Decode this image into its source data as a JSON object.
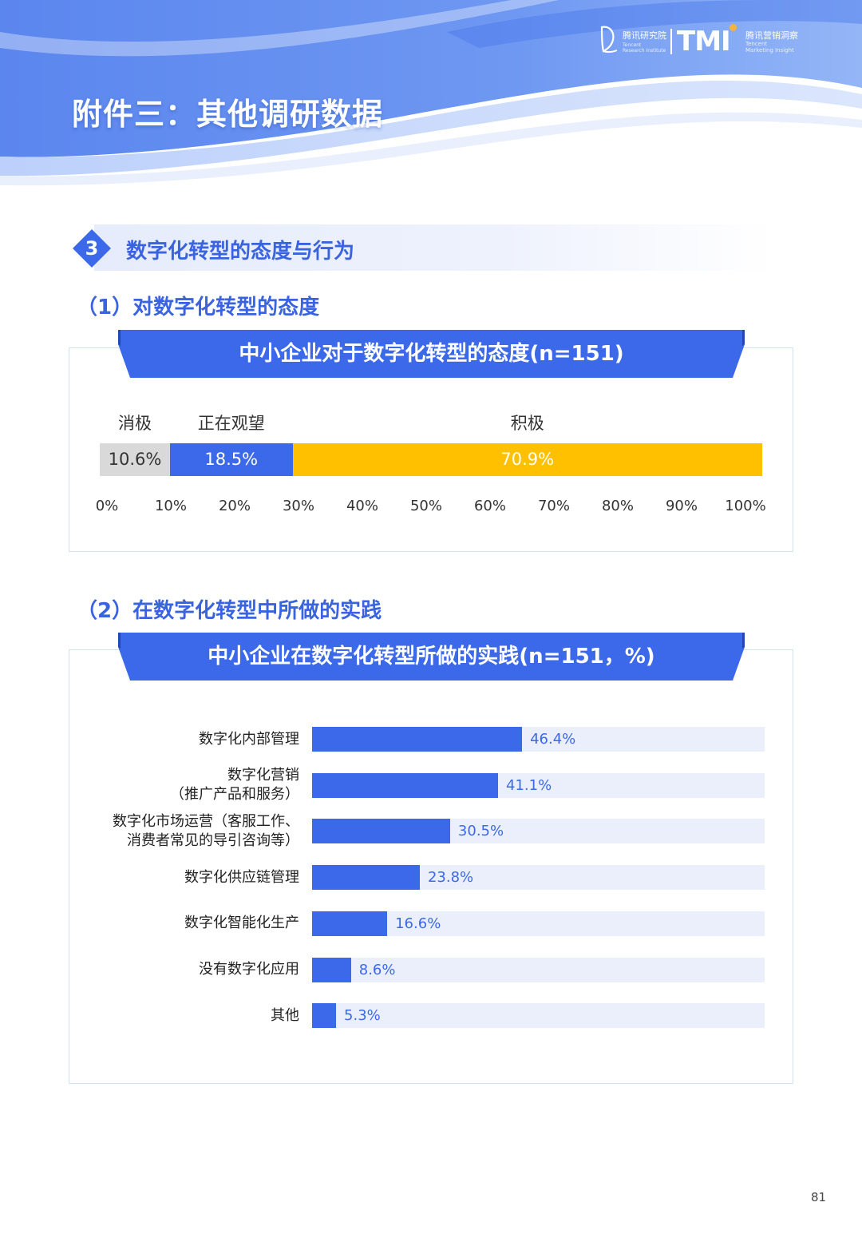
{
  "header": {
    "title": "附件三：其他调研数据",
    "logo": {
      "institute_cn": "腾讯研究院",
      "institute_en_1": "Tencent",
      "institute_en_2": "Research Institute",
      "brand": "TMI",
      "brand_cn": "腾讯营销洞察",
      "brand_en_1": "Tencent",
      "brand_en_2": "Marketing Insight"
    }
  },
  "section": {
    "number": "3",
    "title": "数字化转型的态度与行为"
  },
  "subsections": [
    {
      "title": "（1）对数字化转型的态度"
    },
    {
      "title": "（2）在数字化转型中所做的实践"
    }
  ],
  "colors": {
    "accent": "#3b69ea",
    "positive": "#ffc000",
    "negative": "#d9d9d9",
    "track": "#ebeffc"
  },
  "chart_data": [
    {
      "type": "bar",
      "orientation": "horizontal-stacked",
      "title": "中小企业对于数字化转型的态度(n=151)",
      "categories": [
        "消极",
        "正在观望",
        "积极"
      ],
      "values": [
        10.6,
        18.5,
        70.9
      ],
      "value_labels": [
        "10.6%",
        "18.5%",
        "70.9%"
      ],
      "colors": [
        "#d9d9d9",
        "#3b69ea",
        "#ffc000"
      ],
      "xlim": [
        0,
        100
      ],
      "x_ticks": [
        "0%",
        "10%",
        "20%",
        "30%",
        "40%",
        "50%",
        "60%",
        "70%",
        "80%",
        "90%",
        "100%"
      ],
      "grid": false
    },
    {
      "type": "bar",
      "orientation": "horizontal",
      "title": "中小企业在数字化转型所做的实践(n=151，%)",
      "categories": [
        {
          "lines": [
            "数字化内部管理"
          ]
        },
        {
          "lines": [
            "数字化营销",
            "（推广产品和服务）"
          ]
        },
        {
          "lines": [
            "数字化市场运营（客服工作、",
            "消费者常见的导引咨询等）"
          ]
        },
        {
          "lines": [
            "数字化供应链管理"
          ]
        },
        {
          "lines": [
            "数字化智能化生产"
          ]
        },
        {
          "lines": [
            "没有数字化应用"
          ]
        },
        {
          "lines": [
            "其他"
          ]
        }
      ],
      "values": [
        46.4,
        41.1,
        30.5,
        23.8,
        16.6,
        8.6,
        5.3
      ],
      "value_labels": [
        "46.4%",
        "41.1%",
        "30.5%",
        "23.8%",
        "16.6%",
        "8.6%",
        "5.3%"
      ],
      "xlim": [
        0,
        100
      ],
      "grid": false
    }
  ],
  "page_number": "81"
}
